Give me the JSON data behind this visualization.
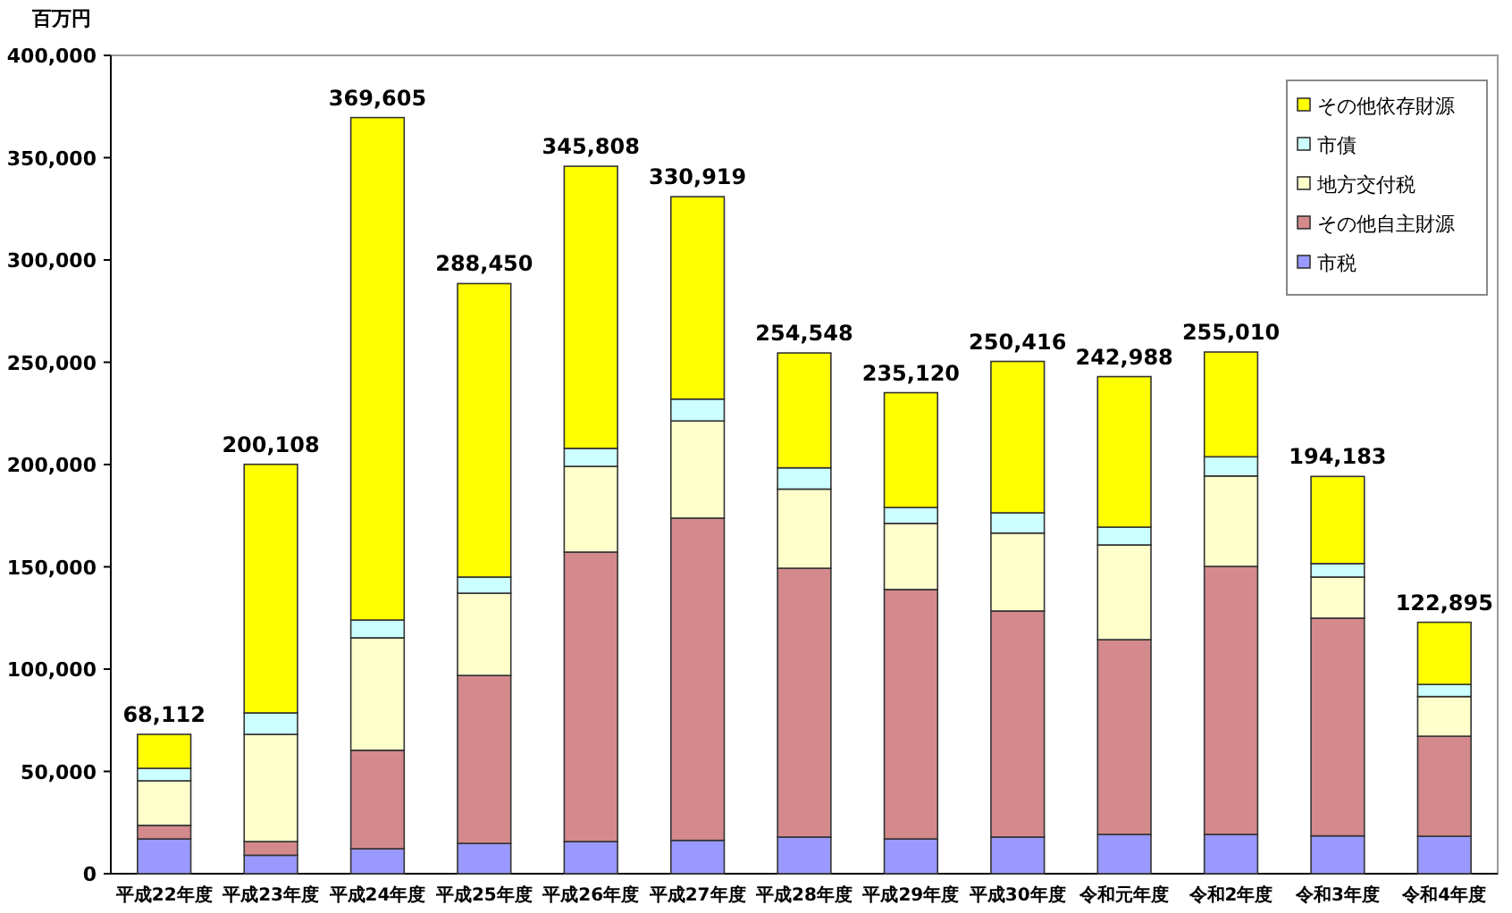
{
  "chart_data": {
    "type": "bar",
    "stacked": true,
    "ylabel": "百万円",
    "legend": "top right",
    "categories": [
      "平成22年度",
      "平成23年度",
      "平成24年度",
      "平成25年度",
      "平成26年度",
      "平成27年度",
      "平成28年度",
      "平成29年度",
      "平成30年度",
      "令和元年度",
      "令和2年度",
      "令和3年度",
      "令和4年度"
    ],
    "series": [
      {
        "name": "市税",
        "color": "#9999ff",
        "values": [
          17000,
          9000,
          12200,
          14800,
          15700,
          16300,
          17900,
          17000,
          17900,
          19200,
          19200,
          18500,
          18300
        ]
      },
      {
        "name": "その他自主財源",
        "color": "#d48a8c",
        "values": [
          6600,
          6700,
          48100,
          82100,
          141500,
          157500,
          131400,
          121900,
          110500,
          95200,
          131000,
          106400,
          48900
        ]
      },
      {
        "name": "地方交付税",
        "color": "#ffffcc",
        "values": [
          21800,
          52400,
          55000,
          40200,
          41900,
          47500,
          38700,
          32300,
          38100,
          46300,
          44200,
          20100,
          19400
        ]
      },
      {
        "name": "市債",
        "color": "#ccffff",
        "values": [
          6100,
          10500,
          8700,
          7900,
          8800,
          10700,
          10400,
          7800,
          9900,
          8700,
          9400,
          6600,
          5900
        ]
      },
      {
        "name": "その他依存財源",
        "color": "#ffff00",
        "values": [
          16612,
          121508,
          245605,
          143450,
          137908,
          98919,
          56148,
          56120,
          74016,
          73588,
          51210,
          42583,
          30395
        ]
      }
    ],
    "totals": [
      "68,112",
      "200,108",
      "369,605",
      "288,450",
      "345,808",
      "330,919",
      "254,548",
      "235,120",
      "250,416",
      "242,988",
      "255,010",
      "194,183",
      "122,895"
    ],
    "ylim": [
      0,
      400000
    ],
    "yticks": [
      {
        "value": 0,
        "label": "0"
      },
      {
        "value": 50000,
        "label": "50,000"
      },
      {
        "value": 100000,
        "label": "100,000"
      },
      {
        "value": 150000,
        "label": "150,000"
      },
      {
        "value": 200000,
        "label": "200,000"
      },
      {
        "value": 250000,
        "label": "250,000"
      },
      {
        "value": 300000,
        "label": "300,000"
      },
      {
        "value": 350000,
        "label": "350,000"
      },
      {
        "value": 400000,
        "label": "400,000"
      }
    ]
  }
}
